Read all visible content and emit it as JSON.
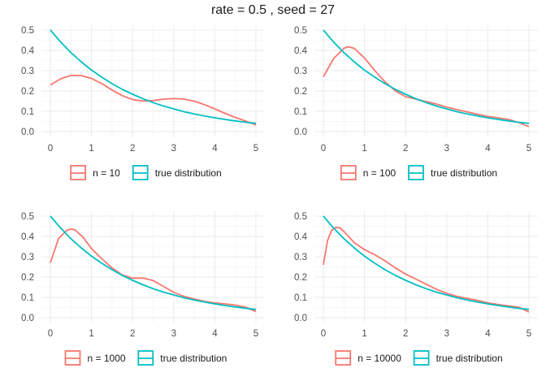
{
  "title": "rate = 0.5 , seed = 27",
  "colors": {
    "sample": "#F8766D",
    "true": "#00BFC4",
    "grid_major": "#EBEBEB",
    "grid_minor": "#F4F4F4"
  },
  "chart_data": [
    {
      "type": "line",
      "xlim": [
        0,
        5
      ],
      "ylim": [
        0,
        0.5
      ],
      "x_ticks": [
        0,
        1,
        2,
        3,
        4,
        5
      ],
      "y_ticks": [
        0.0,
        0.1,
        0.2,
        0.3,
        0.4,
        0.5
      ],
      "grid": true,
      "legend_position": "bottom",
      "series": [
        {
          "name": "n = 10",
          "x": [
            0,
            0.25,
            0.5,
            0.75,
            1,
            1.25,
            1.5,
            1.75,
            2,
            2.25,
            2.5,
            2.75,
            3,
            3.25,
            3.5,
            3.75,
            4,
            4.25,
            4.5,
            4.75,
            5
          ],
          "y": [
            0.23,
            0.26,
            0.277,
            0.276,
            0.262,
            0.236,
            0.205,
            0.177,
            0.158,
            0.151,
            0.153,
            0.16,
            0.163,
            0.16,
            0.15,
            0.133,
            0.112,
            0.09,
            0.07,
            0.052,
            0.033
          ]
        },
        {
          "name": "true distribution",
          "x": [
            0,
            0.25,
            0.5,
            0.75,
            1,
            1.25,
            1.5,
            1.75,
            2,
            2.25,
            2.5,
            2.75,
            3,
            3.25,
            3.5,
            3.75,
            4,
            4.25,
            4.5,
            4.75,
            5
          ],
          "y": [
            0.5,
            0.441,
            0.389,
            0.344,
            0.303,
            0.268,
            0.236,
            0.208,
            0.184,
            0.162,
            0.143,
            0.126,
            0.112,
            0.098,
            0.087,
            0.077,
            0.068,
            0.06,
            0.053,
            0.046,
            0.041
          ]
        }
      ]
    },
    {
      "type": "line",
      "xlim": [
        0,
        5
      ],
      "ylim": [
        0,
        0.5
      ],
      "x_ticks": [
        0,
        1,
        2,
        3,
        4,
        5
      ],
      "y_ticks": [
        0.0,
        0.1,
        0.2,
        0.3,
        0.4,
        0.5
      ],
      "grid": true,
      "legend_position": "bottom",
      "series": [
        {
          "name": "n = 100",
          "x": [
            0,
            0.25,
            0.5,
            0.6,
            0.75,
            1,
            1.25,
            1.5,
            1.75,
            2,
            2.25,
            2.5,
            2.75,
            3,
            3.25,
            3.5,
            3.75,
            4,
            4.25,
            4.5,
            4.75,
            5
          ],
          "y": [
            0.27,
            0.36,
            0.41,
            0.418,
            0.41,
            0.363,
            0.301,
            0.245,
            0.2,
            0.172,
            0.16,
            0.148,
            0.136,
            0.121,
            0.108,
            0.097,
            0.085,
            0.075,
            0.068,
            0.06,
            0.045,
            0.025
          ]
        },
        {
          "name": "true distribution",
          "x": [
            0,
            0.25,
            0.5,
            0.75,
            1,
            1.25,
            1.5,
            1.75,
            2,
            2.25,
            2.5,
            2.75,
            3,
            3.25,
            3.5,
            3.75,
            4,
            4.25,
            4.5,
            4.75,
            5
          ],
          "y": [
            0.5,
            0.441,
            0.389,
            0.344,
            0.303,
            0.268,
            0.236,
            0.208,
            0.184,
            0.162,
            0.143,
            0.126,
            0.112,
            0.098,
            0.087,
            0.077,
            0.068,
            0.06,
            0.053,
            0.046,
            0.041
          ]
        }
      ]
    },
    {
      "type": "line",
      "xlim": [
        0,
        5
      ],
      "ylim": [
        0,
        0.5
      ],
      "x_ticks": [
        0,
        1,
        2,
        3,
        4,
        5
      ],
      "y_ticks": [
        0.0,
        0.1,
        0.2,
        0.3,
        0.4,
        0.5
      ],
      "grid": true,
      "legend_position": "bottom",
      "series": [
        {
          "name": "n = 1000",
          "x": [
            0,
            0.2,
            0.4,
            0.5,
            0.6,
            0.8,
            1,
            1.25,
            1.5,
            1.75,
            2,
            2.25,
            2.5,
            2.75,
            3,
            3.25,
            3.5,
            3.75,
            4,
            4.25,
            4.5,
            4.75,
            5
          ],
          "y": [
            0.27,
            0.39,
            0.43,
            0.437,
            0.432,
            0.395,
            0.34,
            0.29,
            0.245,
            0.21,
            0.195,
            0.195,
            0.183,
            0.154,
            0.125,
            0.105,
            0.092,
            0.08,
            0.073,
            0.068,
            0.062,
            0.052,
            0.03
          ]
        },
        {
          "name": "true distribution",
          "x": [
            0,
            0.25,
            0.5,
            0.75,
            1,
            1.25,
            1.5,
            1.75,
            2,
            2.25,
            2.5,
            2.75,
            3,
            3.25,
            3.5,
            3.75,
            4,
            4.25,
            4.5,
            4.75,
            5
          ],
          "y": [
            0.5,
            0.441,
            0.389,
            0.344,
            0.303,
            0.268,
            0.236,
            0.208,
            0.184,
            0.162,
            0.143,
            0.126,
            0.112,
            0.098,
            0.087,
            0.077,
            0.068,
            0.06,
            0.053,
            0.046,
            0.041
          ]
        }
      ]
    },
    {
      "type": "line",
      "xlim": [
        0,
        5
      ],
      "ylim": [
        0,
        0.5
      ],
      "x_ticks": [
        0,
        1,
        2,
        3,
        4,
        5
      ],
      "y_ticks": [
        0.0,
        0.1,
        0.2,
        0.3,
        0.4,
        0.5
      ],
      "grid": true,
      "legend_position": "bottom",
      "series": [
        {
          "name": "n = 10000",
          "x": [
            0,
            0.1,
            0.2,
            0.3,
            0.4,
            0.5,
            0.75,
            1,
            1.25,
            1.5,
            1.75,
            2,
            2.25,
            2.5,
            2.75,
            3,
            3.25,
            3.5,
            3.75,
            4,
            4.25,
            4.5,
            4.75,
            5
          ],
          "y": [
            0.26,
            0.38,
            0.43,
            0.445,
            0.443,
            0.425,
            0.37,
            0.335,
            0.31,
            0.28,
            0.245,
            0.215,
            0.19,
            0.165,
            0.14,
            0.12,
            0.105,
            0.095,
            0.085,
            0.073,
            0.065,
            0.058,
            0.052,
            0.028
          ]
        },
        {
          "name": "true distribution",
          "x": [
            0,
            0.25,
            0.5,
            0.75,
            1,
            1.25,
            1.5,
            1.75,
            2,
            2.25,
            2.5,
            2.75,
            3,
            3.25,
            3.5,
            3.75,
            4,
            4.25,
            4.5,
            4.75,
            5
          ],
          "y": [
            0.5,
            0.441,
            0.389,
            0.344,
            0.303,
            0.268,
            0.236,
            0.208,
            0.184,
            0.162,
            0.143,
            0.126,
            0.112,
            0.098,
            0.087,
            0.077,
            0.068,
            0.06,
            0.053,
            0.046,
            0.041
          ]
        }
      ]
    }
  ]
}
